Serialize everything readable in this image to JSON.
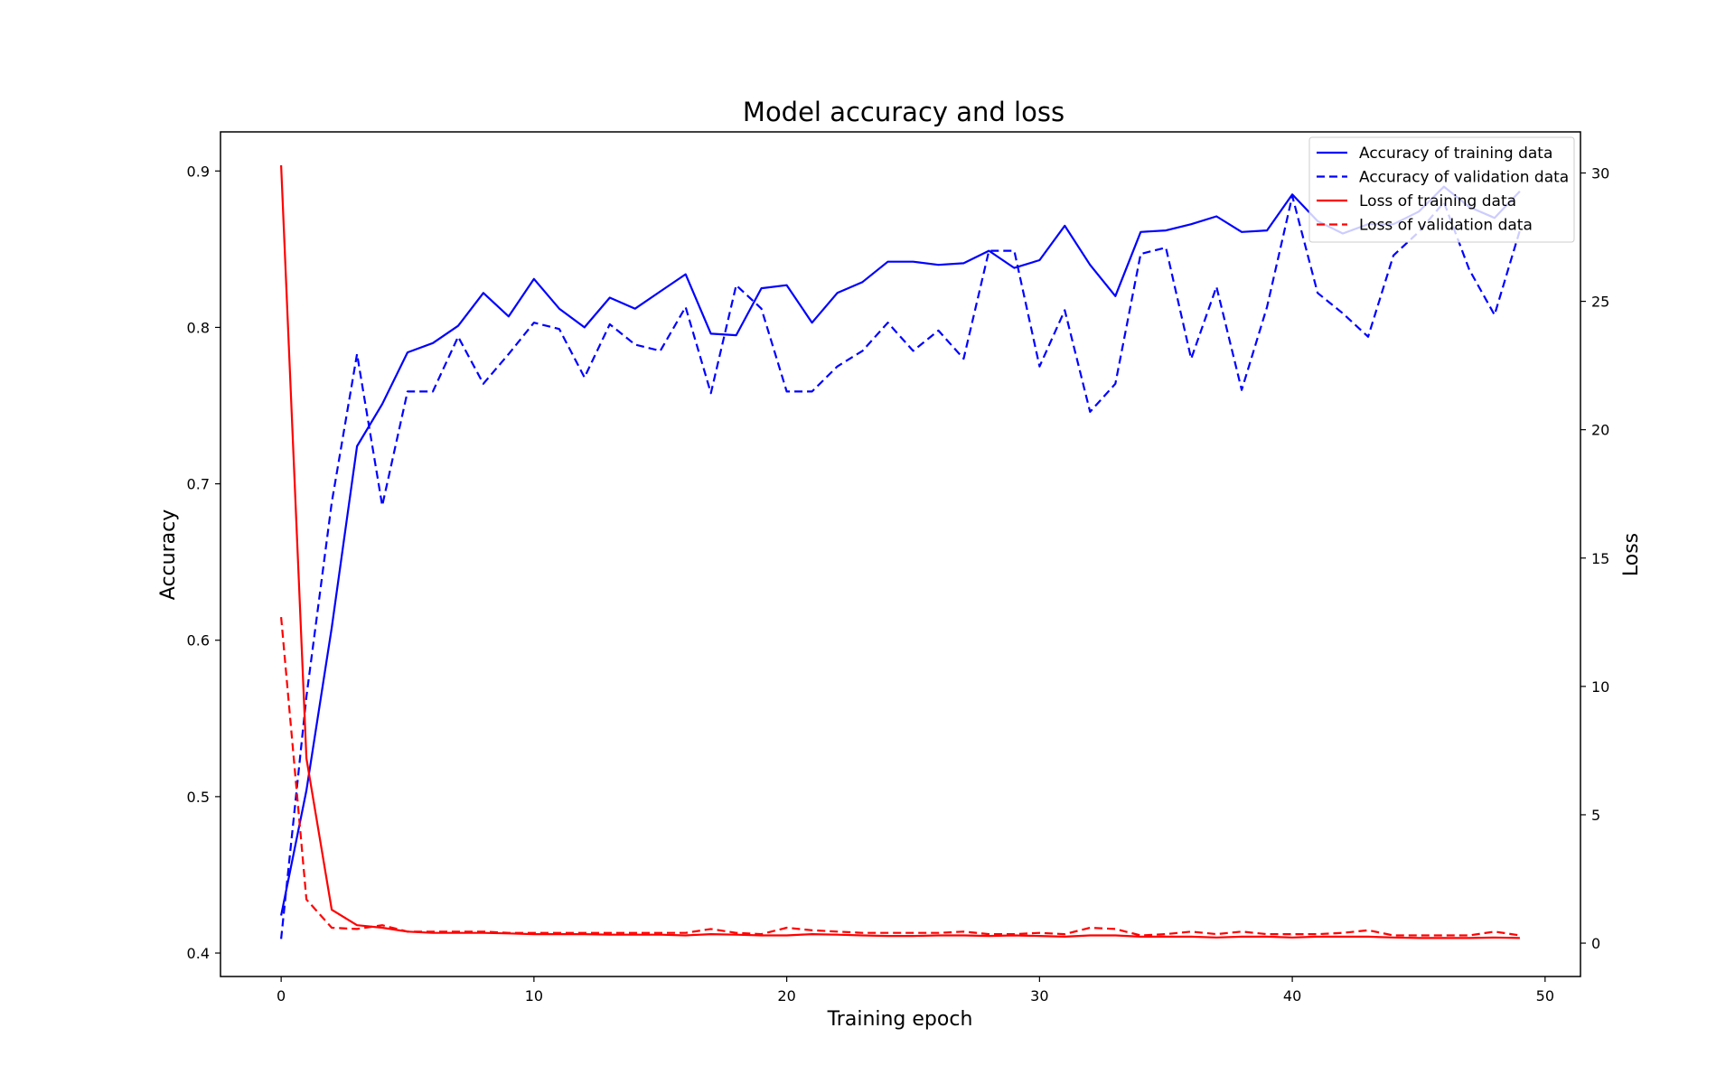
{
  "chart_data": {
    "type": "line",
    "title": "Model accuracy and loss",
    "xlabel": "Training epoch",
    "ylabel_left": "Accuracy",
    "ylabel_right": "Loss",
    "xlim": [
      -2.4,
      51.4
    ],
    "ylim_left": [
      0.385,
      0.925
    ],
    "ylim_right": [
      -1.3,
      31.6
    ],
    "x_ticks": [
      0,
      10,
      20,
      30,
      40,
      50
    ],
    "y_left_ticks": [
      0.4,
      0.5,
      0.6,
      0.7,
      0.8,
      0.9
    ],
    "y_right_ticks": [
      0,
      5,
      10,
      15,
      20,
      25,
      30
    ],
    "legend_position": "top-right",
    "grid": false,
    "x": [
      0,
      1,
      2,
      3,
      4,
      5,
      6,
      7,
      8,
      9,
      10,
      11,
      12,
      13,
      14,
      15,
      16,
      17,
      18,
      19,
      20,
      21,
      22,
      23,
      24,
      25,
      26,
      27,
      28,
      29,
      30,
      31,
      32,
      33,
      34,
      35,
      36,
      37,
      38,
      39,
      40,
      41,
      42,
      43,
      44,
      45,
      46,
      47,
      48,
      49
    ],
    "series": [
      {
        "name": "Accuracy of training data",
        "axis": "left",
        "color": "#0000ff",
        "style": "solid",
        "values": [
          0.424,
          0.504,
          0.608,
          0.724,
          0.751,
          0.784,
          0.79,
          0.801,
          0.822,
          0.807,
          0.831,
          0.812,
          0.8,
          0.819,
          0.812,
          0.823,
          0.834,
          0.796,
          0.795,
          0.825,
          0.827,
          0.803,
          0.822,
          0.829,
          0.842,
          0.842,
          0.84,
          0.841,
          0.849,
          0.838,
          0.843,
          0.865,
          0.84,
          0.82,
          0.861,
          0.862,
          0.866,
          0.871,
          0.861,
          0.862,
          0.885,
          0.868,
          0.86,
          0.866,
          0.866,
          0.874,
          0.89,
          0.877,
          0.87,
          0.887
        ]
      },
      {
        "name": "Accuracy of validation data",
        "axis": "left",
        "color": "#0000ff",
        "style": "dashed",
        "values": [
          0.409,
          0.564,
          0.688,
          0.783,
          0.686,
          0.759,
          0.759,
          0.794,
          0.764,
          0.783,
          0.803,
          0.799,
          0.768,
          0.802,
          0.789,
          0.785,
          0.813,
          0.758,
          0.827,
          0.812,
          0.759,
          0.759,
          0.775,
          0.785,
          0.803,
          0.785,
          0.798,
          0.78,
          0.849,
          0.849,
          0.775,
          0.811,
          0.746,
          0.764,
          0.847,
          0.851,
          0.78,
          0.826,
          0.76,
          0.813,
          0.884,
          0.822,
          0.809,
          0.794,
          0.846,
          0.861,
          0.88,
          0.837,
          0.808,
          0.862
        ]
      },
      {
        "name": "Loss of training data",
        "axis": "right",
        "color": "#ff0000",
        "style": "solid",
        "values": [
          30.3,
          7.2,
          1.3,
          0.7,
          0.6,
          0.45,
          0.4,
          0.4,
          0.4,
          0.38,
          0.35,
          0.35,
          0.35,
          0.33,
          0.33,
          0.33,
          0.3,
          0.35,
          0.33,
          0.3,
          0.3,
          0.35,
          0.33,
          0.3,
          0.28,
          0.28,
          0.3,
          0.3,
          0.28,
          0.3,
          0.28,
          0.25,
          0.3,
          0.3,
          0.25,
          0.25,
          0.25,
          0.22,
          0.25,
          0.25,
          0.22,
          0.25,
          0.25,
          0.25,
          0.22,
          0.2,
          0.2,
          0.2,
          0.22,
          0.2
        ]
      },
      {
        "name": "Loss of validation data",
        "axis": "right",
        "color": "#ff0000",
        "style": "dashed",
        "values": [
          12.7,
          1.7,
          0.6,
          0.55,
          0.7,
          0.45,
          0.45,
          0.45,
          0.45,
          0.4,
          0.4,
          0.4,
          0.4,
          0.4,
          0.4,
          0.4,
          0.4,
          0.55,
          0.4,
          0.35,
          0.6,
          0.5,
          0.45,
          0.4,
          0.4,
          0.4,
          0.4,
          0.45,
          0.35,
          0.35,
          0.4,
          0.35,
          0.6,
          0.55,
          0.3,
          0.35,
          0.45,
          0.35,
          0.45,
          0.35,
          0.35,
          0.35,
          0.4,
          0.5,
          0.3,
          0.3,
          0.3,
          0.3,
          0.45,
          0.3
        ]
      }
    ]
  }
}
